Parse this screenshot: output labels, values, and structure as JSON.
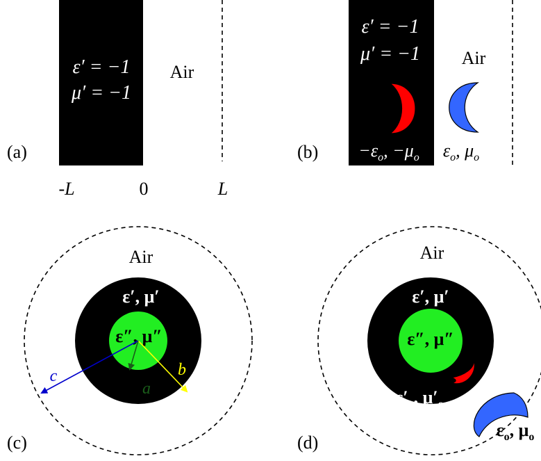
{
  "panels": {
    "a": {
      "tag": "(a)",
      "eps_label": "ε′ = −1",
      "mu_label": "μ′ = −1",
      "air_label": "Air",
      "axis": {
        "left": "-L",
        "zero": "0",
        "right": "L"
      }
    },
    "b": {
      "tag": "(b)",
      "eps_label": "ε′ = −1",
      "mu_label": "μ′ = −1",
      "air_label": "Air",
      "image_params": "−ε",
      "image_params_sub": "o",
      "image_params_mid": ", −μ",
      "object_params": "ε",
      "object_params_sub": "o",
      "object_params_mid": ", μ"
    },
    "c": {
      "tag": "(c)",
      "air_label": "Air",
      "shell_label": "ε′, μ′",
      "core_label": "ε″, μ″",
      "radius_a": "a",
      "radius_b": "b",
      "radius_c": "c"
    },
    "d": {
      "tag": "(d)",
      "air_label": "Air",
      "shell_label": "ε′, μ′",
      "core_label": "ε″, μ″",
      "image_params": "ε′",
      "image_params_sub": "o",
      "image_params_mid": ", μ′",
      "object_params": "ε",
      "object_params_sub": "o",
      "object_params_mid": ", μ"
    }
  },
  "colors": {
    "medium": "#000000",
    "core": "#22ee22",
    "image_object": "#ff0000",
    "object": "#3366ff",
    "arrow_a": "#1a5c1a",
    "arrow_b": "#ffff00",
    "arrow_c": "#0000cc"
  }
}
